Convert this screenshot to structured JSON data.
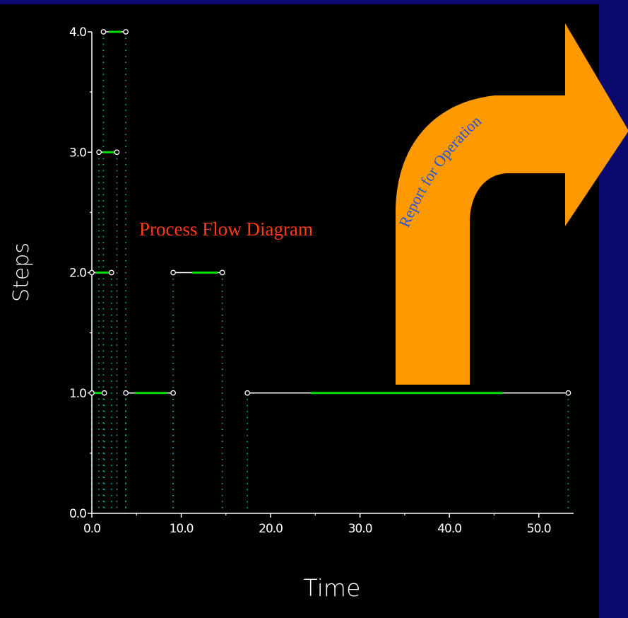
{
  "chart_data": {
    "type": "scatter",
    "title": "Process Flow Diagram",
    "xlabel": "Time",
    "ylabel": "Steps",
    "xlim": [
      0,
      53.5
    ],
    "ylim": [
      0,
      4
    ],
    "grid": false,
    "x_ticks": [
      "0.0",
      "10.0",
      "20.0",
      "30.0",
      "40.0",
      "50.0"
    ],
    "x_tick_values": [
      0,
      10,
      20,
      30,
      40,
      50
    ],
    "y_ticks": [
      "0.0",
      "1.0",
      "2.0",
      "3.0",
      "4.0"
    ],
    "y_tick_values": [
      0,
      1,
      2,
      3,
      4
    ],
    "segments": [
      {
        "step": 1,
        "start": 0.0,
        "end": 1.4,
        "active_start": 0.3,
        "active_end": 1.1
      },
      {
        "step": 2,
        "start": 0.0,
        "end": 2.2,
        "active_start": 0.4,
        "active_end": 2.0
      },
      {
        "step": 3,
        "start": 0.8,
        "end": 2.8,
        "active_start": 1.2,
        "active_end": 2.6
      },
      {
        "step": 4,
        "start": 1.3,
        "end": 3.8,
        "active_start": 1.9,
        "active_end": 3.3
      },
      {
        "step": 1,
        "start": 3.8,
        "end": 9.1,
        "active_start": 4.8,
        "active_end": 8.4
      },
      {
        "step": 2,
        "start": 9.1,
        "end": 14.6,
        "active_start": 11.2,
        "active_end": 14.1
      },
      {
        "step": 1,
        "start": 17.4,
        "end": 53.3,
        "active_start": 24.5,
        "active_end": 46.0
      }
    ]
  },
  "colors": {
    "background": "#0a0a6e",
    "plot_background": "#000000",
    "axis": "#ffffff",
    "segment_line": "#ffffff",
    "active_line": "#00e000",
    "dotted_drop": "#00c8c8",
    "title": "#ff3a1a",
    "arrow_fill": "#ff9900",
    "arrow_label": "#2255dd"
  },
  "arrow": {
    "label": "Report for Operation"
  }
}
